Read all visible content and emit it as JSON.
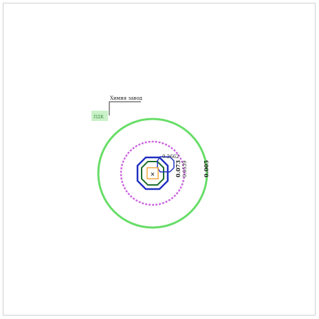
{
  "map": {
    "callout_label": "Химия завод",
    "legend_text": "ПДК",
    "source_marker": "×",
    "contours": [
      {
        "id": "c-small",
        "label": "0.2662",
        "color": "#1f2fbf"
      },
      {
        "id": "c-darkgreen",
        "label": "",
        "color": "#1a6b2a"
      },
      {
        "id": "c-blue",
        "label": "0.073",
        "color": "#1f2fbf"
      },
      {
        "id": "c-purple",
        "label": "0.0539",
        "color": "#cc66e0"
      },
      {
        "id": "c-green",
        "label": "0.005",
        "color": "#66dd66"
      }
    ],
    "colors": {
      "source": "#cc2222",
      "source_box": "#f4a640",
      "legend_fill": "#c9f2c9",
      "callout_line": "#333333"
    }
  }
}
